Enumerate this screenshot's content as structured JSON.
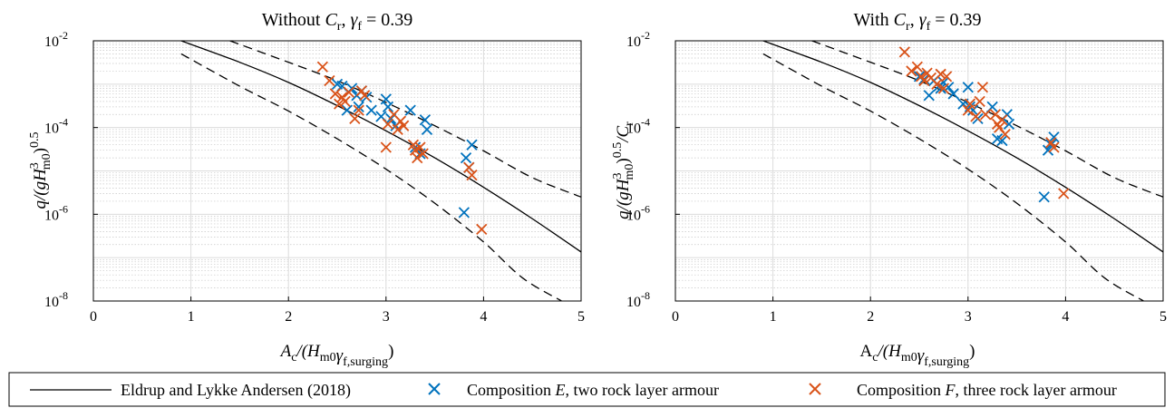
{
  "chart_data": [
    {
      "type": "scatter",
      "title_plain": "Without ",
      "title_sym": "C",
      "title_sub": "r",
      "title_rest": ", ",
      "title_gamma": "γ",
      "title_gamma_sub": "f",
      "title_value": " = 0.39",
      "ylabel_parts": [
        "q/(gH",
        "3",
        "m0",
        ")",
        "0.5",
        ""
      ],
      "xlabel_parts": [
        "A",
        "c",
        "/(H",
        "m0",
        "γ",
        "f,surging",
        ")"
      ],
      "xlim": [
        0,
        5
      ],
      "ylim": [
        1e-08,
        0.01
      ],
      "yscale": "log",
      "grid": true,
      "xticks": [
        "0",
        "1",
        "2",
        "3",
        "4",
        "5"
      ],
      "yticks": [
        {
          "base": "10",
          "exp": "-8"
        },
        {
          "base": "10",
          "exp": "-6"
        },
        {
          "base": "10",
          "exp": "-4"
        },
        {
          "base": "10",
          "exp": "-2"
        }
      ],
      "series": [
        {
          "name": "Composition E, two rock layer armour",
          "color": "#0072BD",
          "marker": "x",
          "x": [
            2.5,
            2.55,
            2.6,
            2.65,
            2.7,
            2.72,
            2.75,
            2.8,
            2.85,
            2.95,
            3.0,
            3.02,
            3.05,
            3.1,
            3.25,
            3.3,
            3.35,
            3.4,
            3.42,
            3.8,
            3.82,
            3.85,
            3.88
          ],
          "y": [
            0.001,
            0.0009,
            0.00025,
            0.0008,
            0.00055,
            0.0003,
            0.0007,
            0.0005,
            0.00025,
            0.00018,
            0.00045,
            0.0003,
            0.00016,
            0.00011,
            0.00025,
            3.5e-05,
            2.5e-05,
            0.00015,
            9e-05,
            1.1e-06,
            2e-05,
            1.2e-05,
            4e-05
          ]
        },
        {
          "name": "Composition F, three rock layer armour",
          "color": "#D95319",
          "marker": "x",
          "x": [
            2.35,
            2.42,
            2.48,
            2.52,
            2.55,
            2.58,
            2.62,
            2.68,
            2.72,
            2.75,
            2.78,
            3.0,
            3.02,
            3.08,
            3.12,
            3.15,
            3.18,
            3.28,
            3.3,
            3.32,
            3.35,
            3.38,
            3.85,
            3.88,
            3.98
          ],
          "y": [
            0.0025,
            0.0012,
            0.0006,
            0.00035,
            0.0005,
            0.0004,
            0.00065,
            0.00016,
            0.00025,
            0.0007,
            0.00055,
            3.5e-05,
            0.00012,
            0.0002,
            9e-05,
            0.00014,
            0.00011,
            4e-05,
            3e-05,
            2e-05,
            3.5e-05,
            2.5e-05,
            1.2e-05,
            8e-06,
            4.5e-07
          ]
        }
      ],
      "curves": [
        {
          "name": "Eldrup and Lykke Andersen (2018)",
          "style": "solid",
          "x": [
            0.9,
            1.5,
            2.0,
            2.5,
            3.0,
            3.5,
            4.0,
            4.5,
            5.0
          ],
          "y": [
            0.01,
            0.0032,
            0.0011,
            0.00032,
            8.4e-05,
            2e-05,
            4.2e-06,
            7.9e-07,
            1.35e-07
          ]
        },
        {
          "name": "",
          "style": "dashed",
          "x": [
            1.4,
            2.0,
            2.5,
            3.0,
            3.5,
            4.0,
            4.5,
            5.0
          ],
          "y": [
            0.01,
            0.0032,
            0.0012,
            0.00038,
            0.00011,
            2.9e-05,
            7e-06,
            2.5e-06
          ]
        },
        {
          "name": "",
          "style": "dashed",
          "x": [
            0.9,
            1.5,
            2.0,
            2.5,
            3.0,
            3.5,
            4.0,
            4.4,
            4.8
          ],
          "y": [
            0.005,
            0.0009,
            0.00024,
            5.5e-05,
            1.1e-05,
            1.8e-06,
            2.3e-07,
            3.4e-08,
            1e-08
          ]
        }
      ]
    },
    {
      "type": "scatter",
      "title_plain": "With ",
      "title_sym": "C",
      "title_sub": "r",
      "title_rest": ", ",
      "title_gamma": "γ",
      "title_gamma_sub": "f",
      "title_value": " = 0.39",
      "ylabel_parts": [
        "q/(gH",
        "3",
        "m0",
        ")",
        "0.5",
        "/C",
        "r"
      ],
      "xlabel_parts": [
        "A",
        "c",
        "/(H",
        "m0",
        "γ",
        "f,surging",
        ")"
      ],
      "xlim": [
        0,
        5
      ],
      "ylim": [
        1e-08,
        0.01
      ],
      "yscale": "log",
      "grid": true,
      "xticks": [
        "0",
        "1",
        "2",
        "3",
        "4",
        "5"
      ],
      "yticks": [
        {
          "base": "10",
          "exp": "-8"
        },
        {
          "base": "10",
          "exp": "-6"
        },
        {
          "base": "10",
          "exp": "-4"
        },
        {
          "base": "10",
          "exp": "-2"
        }
      ],
      "series": [
        {
          "name": "Composition E, two rock layer armour",
          "color": "#0072BD",
          "marker": "x",
          "x": [
            2.5,
            2.55,
            2.6,
            2.65,
            2.7,
            2.72,
            2.75,
            2.8,
            2.85,
            2.95,
            3.0,
            3.02,
            3.05,
            3.1,
            3.25,
            3.3,
            3.35,
            3.4,
            3.42,
            3.78,
            3.82,
            3.85,
            3.88
          ],
          "y": [
            0.0015,
            0.0013,
            0.00055,
            0.0012,
            0.0009,
            0.0008,
            0.0011,
            0.00085,
            0.0006,
            0.00035,
            0.00085,
            0.0003,
            0.00025,
            0.00016,
            0.0003,
            5.5e-05,
            5e-05,
            0.0002,
            0.00012,
            2.5e-06,
            3e-05,
            4e-05,
            6e-05
          ]
        },
        {
          "name": "Composition F, three rock layer armour",
          "color": "#D95319",
          "marker": "x",
          "x": [
            2.35,
            2.42,
            2.48,
            2.52,
            2.55,
            2.58,
            2.62,
            2.68,
            2.72,
            2.75,
            2.78,
            3.0,
            3.02,
            3.08,
            3.12,
            3.15,
            3.18,
            3.28,
            3.3,
            3.32,
            3.35,
            3.38,
            3.85,
            3.88,
            3.98
          ],
          "y": [
            0.0055,
            0.002,
            0.0025,
            0.0015,
            0.0012,
            0.0018,
            0.0014,
            0.001,
            0.0017,
            0.0008,
            0.0015,
            0.00025,
            0.00035,
            0.00018,
            0.0004,
            0.00085,
            0.0002,
            0.0002,
            0.00012,
            0.0001,
            0.00015,
            7e-05,
            4.5e-05,
            3.5e-05,
            3e-06
          ]
        }
      ],
      "curves": [
        {
          "name": "Eldrup and Lykke Andersen (2018)",
          "style": "solid",
          "x": [
            0.9,
            1.5,
            2.0,
            2.5,
            3.0,
            3.5,
            4.0,
            4.5,
            5.0
          ],
          "y": [
            0.01,
            0.0032,
            0.0011,
            0.00032,
            8.4e-05,
            2e-05,
            4.2e-06,
            7.9e-07,
            1.35e-07
          ]
        },
        {
          "name": "",
          "style": "dashed",
          "x": [
            1.4,
            2.0,
            2.5,
            3.0,
            3.5,
            4.0,
            4.5,
            5.0
          ],
          "y": [
            0.01,
            0.0032,
            0.0012,
            0.00038,
            0.00011,
            2.9e-05,
            7e-06,
            2.5e-06
          ]
        },
        {
          "name": "",
          "style": "dashed",
          "x": [
            0.9,
            1.5,
            2.0,
            2.5,
            3.0,
            3.5,
            4.0,
            4.4,
            4.8
          ],
          "y": [
            0.005,
            0.0009,
            0.00024,
            5.5e-05,
            1.1e-05,
            1.8e-06,
            2.3e-07,
            3.4e-08,
            1e-08
          ]
        }
      ]
    }
  ],
  "legend": {
    "entries": [
      {
        "style": "line",
        "text": "Eldrup and Lykke Andersen (2018)"
      },
      {
        "style": "x",
        "color": "#0072BD",
        "pre": "Composition ",
        "italic": "E",
        "post": ", two rock layer armour"
      },
      {
        "style": "x",
        "color": "#D95319",
        "pre": "Composition ",
        "italic": "F",
        "post": ", three rock layer armour"
      }
    ]
  }
}
